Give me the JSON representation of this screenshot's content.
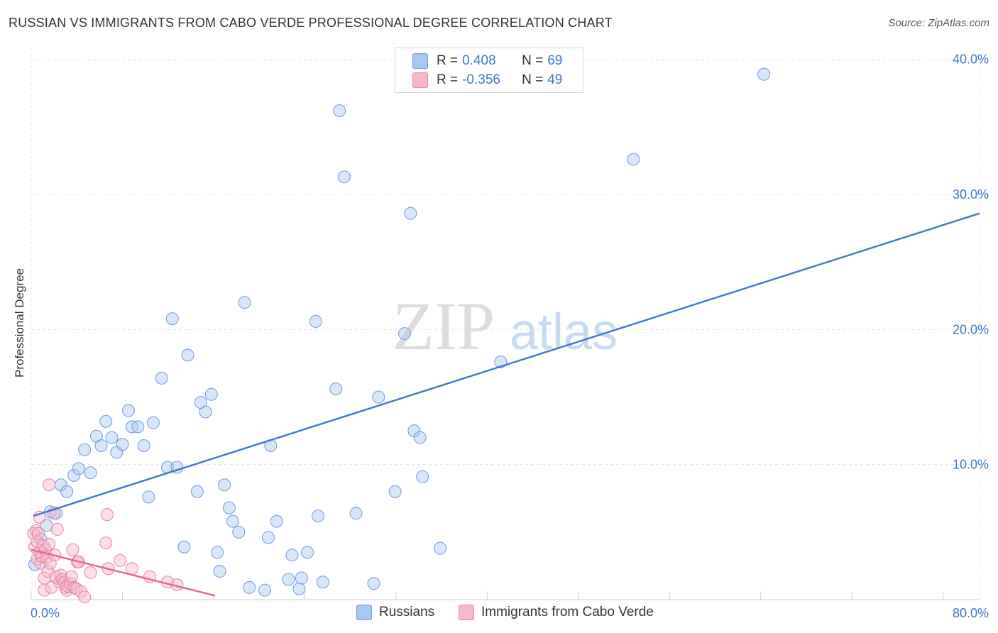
{
  "title": "RUSSIAN VS IMMIGRANTS FROM CABO VERDE PROFESSIONAL DEGREE CORRELATION CHART",
  "source": "Source: ZipAtlas.com",
  "watermark": "ZIPatlas",
  "legend": {
    "rows": [
      {
        "r_label": "R =",
        "r_value": "0.408",
        "n_label": "N =",
        "n_value": "69",
        "color": "#a9c8ef",
        "border": "#6b9be0"
      },
      {
        "r_label": "R =",
        "r_value": "-0.356",
        "n_label": "N =",
        "n_value": "49",
        "color": "#f6b8cb",
        "border": "#e882a5"
      }
    ]
  },
  "bottom_legend": {
    "items": [
      {
        "label": "Russians",
        "color": "#a9c8ef",
        "border": "#6b9be0"
      },
      {
        "label": "Immigrants from Cabo Verde",
        "color": "#f6b8cb",
        "border": "#e882a5"
      }
    ]
  },
  "chart_data": {
    "type": "scatter",
    "title": "RUSSIAN VS IMMIGRANTS FROM CABO VERDE PROFESSIONAL DEGREE CORRELATION CHART",
    "xlabel": "",
    "ylabel": "Professional Degree",
    "xlim": [
      0,
      80
    ],
    "ylim": [
      0,
      40
    ],
    "x_ticks": [
      "0.0%",
      "80.0%"
    ],
    "y_ticks": [
      {
        "value": 10,
        "label": "10.0%"
      },
      {
        "value": 20,
        "label": "20.0%"
      },
      {
        "value": 30,
        "label": "30.0%"
      },
      {
        "value": 40,
        "label": "40.0%"
      }
    ],
    "grid": true,
    "series": [
      {
        "name": "Russians",
        "color": "#a9c8ef",
        "edge": "#6b9be0",
        "trend": {
          "x0": 0.2,
          "y0": 6.2,
          "x1": 80,
          "y1": 28.6,
          "color": "#3d78d4"
        },
        "points": [
          [
            0.3,
            2.6
          ],
          [
            0.8,
            4.5
          ],
          [
            1.3,
            5.5
          ],
          [
            1.6,
            6.5
          ],
          [
            2.1,
            6.4
          ],
          [
            2.5,
            8.5
          ],
          [
            3.0,
            8.0
          ],
          [
            3.6,
            9.2
          ],
          [
            4.0,
            9.7
          ],
          [
            4.5,
            11.1
          ],
          [
            5.0,
            9.4
          ],
          [
            5.5,
            12.1
          ],
          [
            5.9,
            11.4
          ],
          [
            6.3,
            13.2
          ],
          [
            6.8,
            12.0
          ],
          [
            7.2,
            10.9
          ],
          [
            7.7,
            11.5
          ],
          [
            8.2,
            14.0
          ],
          [
            8.5,
            12.8
          ],
          [
            9.0,
            12.8
          ],
          [
            9.5,
            11.4
          ],
          [
            9.9,
            7.6
          ],
          [
            10.3,
            13.1
          ],
          [
            11.0,
            16.4
          ],
          [
            11.5,
            9.8
          ],
          [
            11.9,
            20.8
          ],
          [
            12.3,
            9.8
          ],
          [
            12.9,
            3.9
          ],
          [
            13.2,
            18.1
          ],
          [
            14.0,
            8.0
          ],
          [
            14.3,
            14.6
          ],
          [
            14.7,
            13.9
          ],
          [
            15.2,
            15.2
          ],
          [
            15.7,
            3.5
          ],
          [
            15.9,
            2.1
          ],
          [
            16.3,
            8.5
          ],
          [
            16.7,
            6.8
          ],
          [
            17.0,
            5.8
          ],
          [
            17.5,
            5.0
          ],
          [
            18.0,
            22.0
          ],
          [
            18.4,
            0.9
          ],
          [
            19.7,
            0.7
          ],
          [
            20.0,
            4.6
          ],
          [
            20.2,
            11.4
          ],
          [
            20.7,
            5.8
          ],
          [
            21.7,
            1.5
          ],
          [
            22.0,
            3.3
          ],
          [
            22.6,
            0.8
          ],
          [
            22.8,
            1.6
          ],
          [
            23.3,
            3.5
          ],
          [
            24.0,
            20.6
          ],
          [
            24.2,
            6.2
          ],
          [
            24.6,
            1.3
          ],
          [
            25.7,
            15.6
          ],
          [
            26.0,
            36.2
          ],
          [
            26.4,
            31.3
          ],
          [
            27.4,
            6.4
          ],
          [
            28.9,
            1.2
          ],
          [
            29.3,
            15.0
          ],
          [
            30.7,
            8.0
          ],
          [
            31.5,
            19.7
          ],
          [
            32.0,
            28.6
          ],
          [
            32.3,
            12.5
          ],
          [
            32.8,
            12.0
          ],
          [
            33.0,
            9.1
          ],
          [
            34.5,
            3.8
          ],
          [
            39.6,
            17.6
          ],
          [
            50.8,
            32.6
          ],
          [
            61.8,
            38.9
          ]
        ]
      },
      {
        "name": "Immigrants from Cabo Verde",
        "color": "#f6b8cb",
        "edge": "#e882a5",
        "trend": {
          "x0": 0.0,
          "y0": 3.7,
          "x1": 15.5,
          "y1": 0.3,
          "color": "#e2668f"
        },
        "points": [
          [
            0.2,
            4.9
          ],
          [
            0.3,
            3.9
          ],
          [
            0.4,
            5.1
          ],
          [
            0.5,
            4.3
          ],
          [
            0.5,
            3.0
          ],
          [
            0.6,
            4.9
          ],
          [
            0.7,
            6.1
          ],
          [
            0.7,
            3.5
          ],
          [
            0.8,
            2.7
          ],
          [
            0.9,
            3.2
          ],
          [
            1.0,
            4.0
          ],
          [
            1.1,
            1.6
          ],
          [
            1.1,
            0.7
          ],
          [
            1.2,
            3.7
          ],
          [
            1.3,
            3.1
          ],
          [
            1.4,
            2.1
          ],
          [
            1.5,
            4.1
          ],
          [
            1.5,
            8.5
          ],
          [
            1.6,
            2.7
          ],
          [
            1.7,
            0.9
          ],
          [
            1.9,
            6.4
          ],
          [
            2.0,
            3.3
          ],
          [
            2.1,
            1.7
          ],
          [
            2.2,
            5.2
          ],
          [
            2.4,
            1.3
          ],
          [
            2.5,
            1.8
          ],
          [
            2.6,
            1.5
          ],
          [
            2.8,
            1.3
          ],
          [
            2.9,
            0.9
          ],
          [
            3.0,
            0.7
          ],
          [
            3.1,
            1.0
          ],
          [
            3.3,
            1.2
          ],
          [
            3.4,
            1.7
          ],
          [
            3.5,
            3.7
          ],
          [
            3.6,
            0.9
          ],
          [
            3.8,
            0.8
          ],
          [
            3.9,
            2.8
          ],
          [
            4.0,
            2.8
          ],
          [
            4.2,
            0.6
          ],
          [
            4.5,
            0.2
          ],
          [
            5.0,
            2.0
          ],
          [
            6.3,
            4.2
          ],
          [
            6.4,
            6.3
          ],
          [
            6.5,
            2.3
          ],
          [
            7.5,
            2.9
          ],
          [
            8.5,
            2.3
          ],
          [
            10.0,
            1.7
          ],
          [
            11.5,
            1.3
          ],
          [
            12.3,
            1.1
          ]
        ]
      }
    ]
  }
}
